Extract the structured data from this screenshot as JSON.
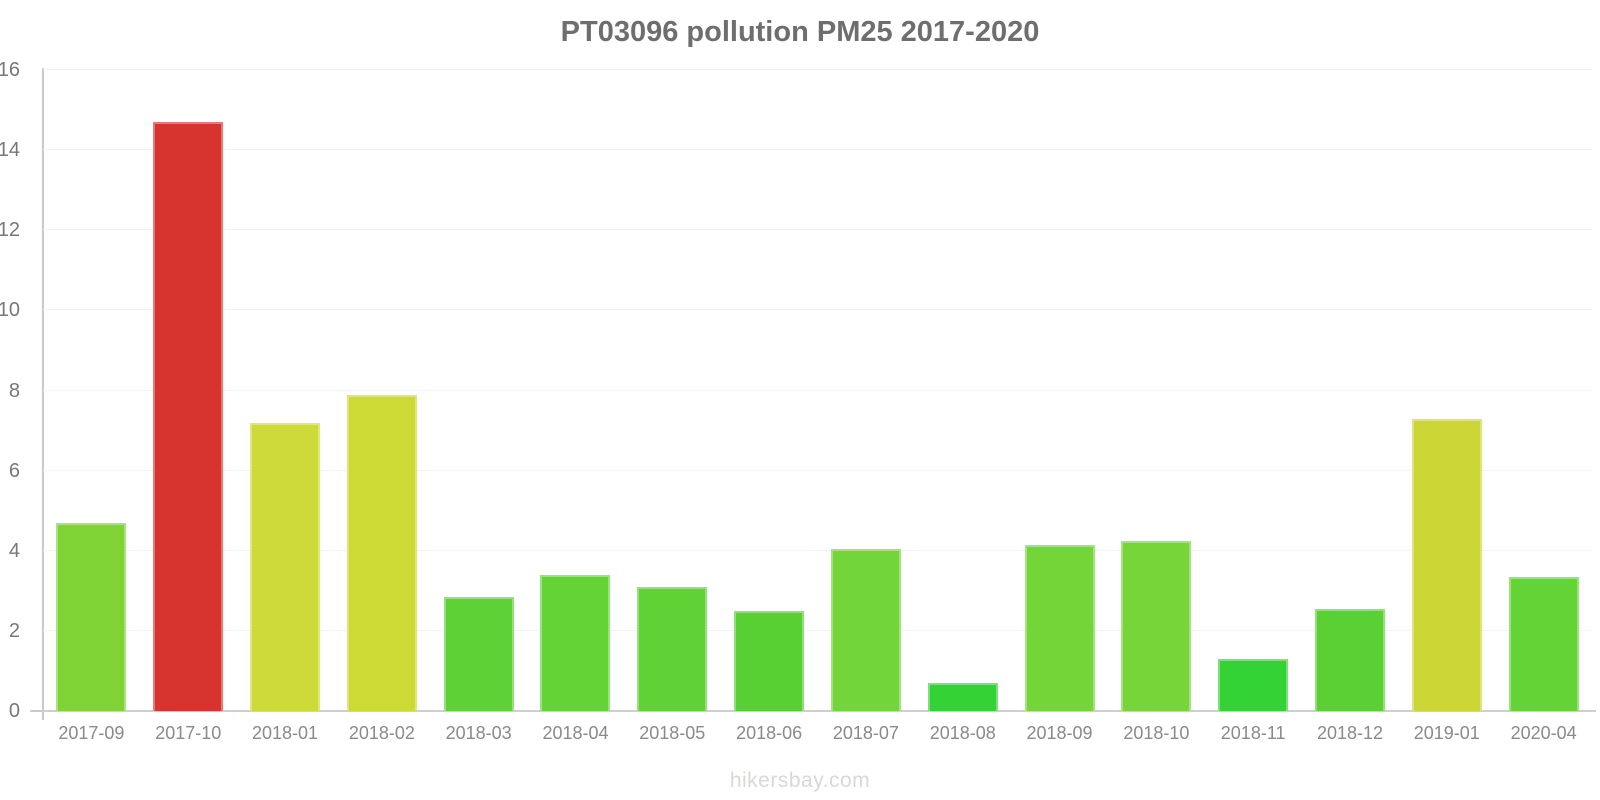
{
  "title": "PT03096 pollution PM25 2017-2020",
  "watermark": "hikersbay.com",
  "chart_data": {
    "type": "bar",
    "title": "PT03096 pollution PM25 2017-2020",
    "xlabel": "",
    "ylabel": "",
    "ylim": [
      0,
      16
    ],
    "yticks": [
      0,
      2,
      4,
      6,
      8,
      10,
      12,
      14,
      16
    ],
    "grid": true,
    "legend": false,
    "categories": [
      "2017-09",
      "2017-10",
      "2018-01",
      "2018-02",
      "2018-03",
      "2018-04",
      "2018-05",
      "2018-06",
      "2018-07",
      "2018-08",
      "2018-09",
      "2018-10",
      "2018-11",
      "2018-12",
      "2019-01",
      "2020-04"
    ],
    "values": [
      4.7,
      14.7,
      7.2,
      7.9,
      2.85,
      3.4,
      3.1,
      2.5,
      4.05,
      0.7,
      4.15,
      4.25,
      1.3,
      2.55,
      7.3,
      3.35
    ],
    "bar_colors": [
      "#7fd335",
      "#d8342f",
      "#cdda39",
      "#cdd935",
      "#5ed136",
      "#63d336",
      "#60d236",
      "#58d034",
      "#72d539",
      "#33d235",
      "#74d539",
      "#77d53a",
      "#33d235",
      "#5ad035",
      "#ccd636",
      "#63d336"
    ],
    "axis_color": "#c9c9c9",
    "gridline_color": "#f2f2f2",
    "title_color": "#6e6e6e",
    "tick_label_color": "#777777"
  }
}
